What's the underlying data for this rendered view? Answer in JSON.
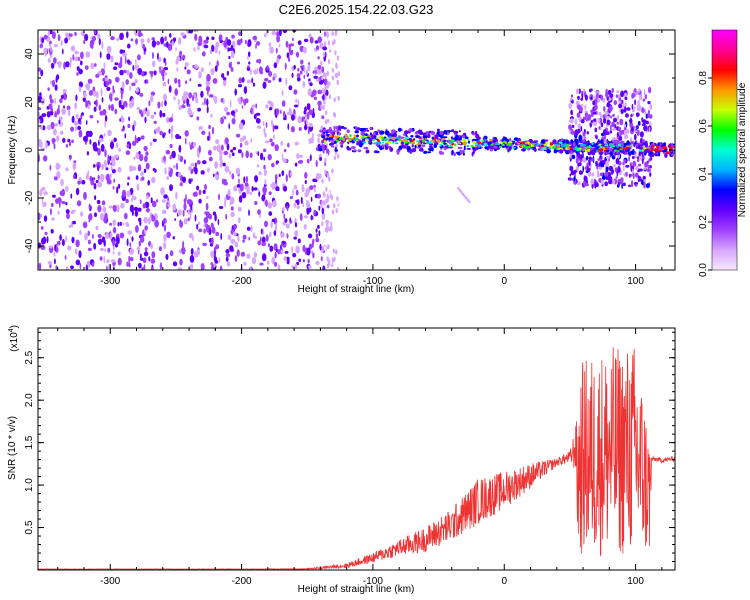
{
  "chart_data": [
    {
      "type": "heatmap",
      "title": "C2E6.2025.154.22.03.G23",
      "xlabel": "Height of straight line (km)",
      "ylabel": "Frequency (Hz)",
      "xlim": [
        -355,
        130
      ],
      "ylim": [
        -50,
        50
      ],
      "xticks": [
        -300,
        -200,
        -100,
        0,
        100
      ],
      "yticks": [
        -40,
        -20,
        0,
        20,
        40
      ],
      "colorbar": {
        "label": "Normalized spectral amplitude",
        "range": [
          0.0,
          1.0
        ],
        "ticks": [
          0.0,
          0.2,
          0.4,
          0.6,
          0.8
        ],
        "colormap": [
          "#f5e8ff",
          "#d7a6ff",
          "#a040ff",
          "#6000ff",
          "#0000ff",
          "#00b4ff",
          "#00ffd2",
          "#00ff00",
          "#c8ff00",
          "#ff9600",
          "#ff0000",
          "#ff0096",
          "#ff00ff"
        ]
      },
      "regions": [
        {
          "label": "broadband noise",
          "x": [
            -355,
            -140
          ],
          "freq": [
            -50,
            50
          ],
          "amplitude": 0.25
        },
        {
          "label": "spectral line",
          "x": [
            -140,
            130
          ],
          "freq_center": [
            5,
            0
          ],
          "amplitude": 0.6
        },
        {
          "label": "broadband burst",
          "x": [
            50,
            112
          ],
          "freq": [
            -15,
            25
          ],
          "amplitude": 0.3
        }
      ]
    },
    {
      "type": "line",
      "xlabel": "Height of straight line (km)",
      "ylabel": "SNR (10 * v/v)",
      "yscale_note": "(x10^4)",
      "xlim": [
        -355,
        130
      ],
      "ylim": [
        0,
        2.85
      ],
      "xticks": [
        -300,
        -200,
        -100,
        0,
        100
      ],
      "yticks": [
        0.5,
        1.0,
        1.5,
        2.0,
        2.5
      ],
      "color": "#ee3333",
      "series": [
        {
          "x": [
            -355,
            -300,
            -250,
            -200,
            -150,
            -120,
            -100,
            -80,
            -60,
            -40,
            -20,
            0,
            20,
            40,
            50,
            60,
            80,
            100,
            112,
            120,
            130
          ],
          "y": [
            0.01,
            0.01,
            0.01,
            0.01,
            0.01,
            0.04,
            0.12,
            0.22,
            0.3,
            0.45,
            0.7,
            0.85,
            1.05,
            1.25,
            1.3,
            1.35,
            1.3,
            1.3,
            1.3,
            1.28,
            1.3
          ],
          "spread": [
            0.005,
            0.005,
            0.005,
            0.005,
            0.01,
            0.06,
            0.12,
            0.2,
            0.3,
            0.4,
            0.55,
            0.45,
            0.3,
            0.1,
            0.15,
            1.1,
            1.25,
            1.3,
            0.05,
            0.06,
            0.06
          ]
        }
      ]
    }
  ],
  "ui": {
    "title": "C2E6.2025.154.22.03.G23",
    "xaxis_label": "Height of straight line (km)",
    "top_ylabel": "Frequency (Hz)",
    "bottom_ylabel": "SNR (10 * v/v)",
    "bottom_scale": "(x10",
    "bottom_scale_exp": "4",
    "bottom_scale_close": ")",
    "colorbar_label": "Normalized spectral amplitude"
  }
}
